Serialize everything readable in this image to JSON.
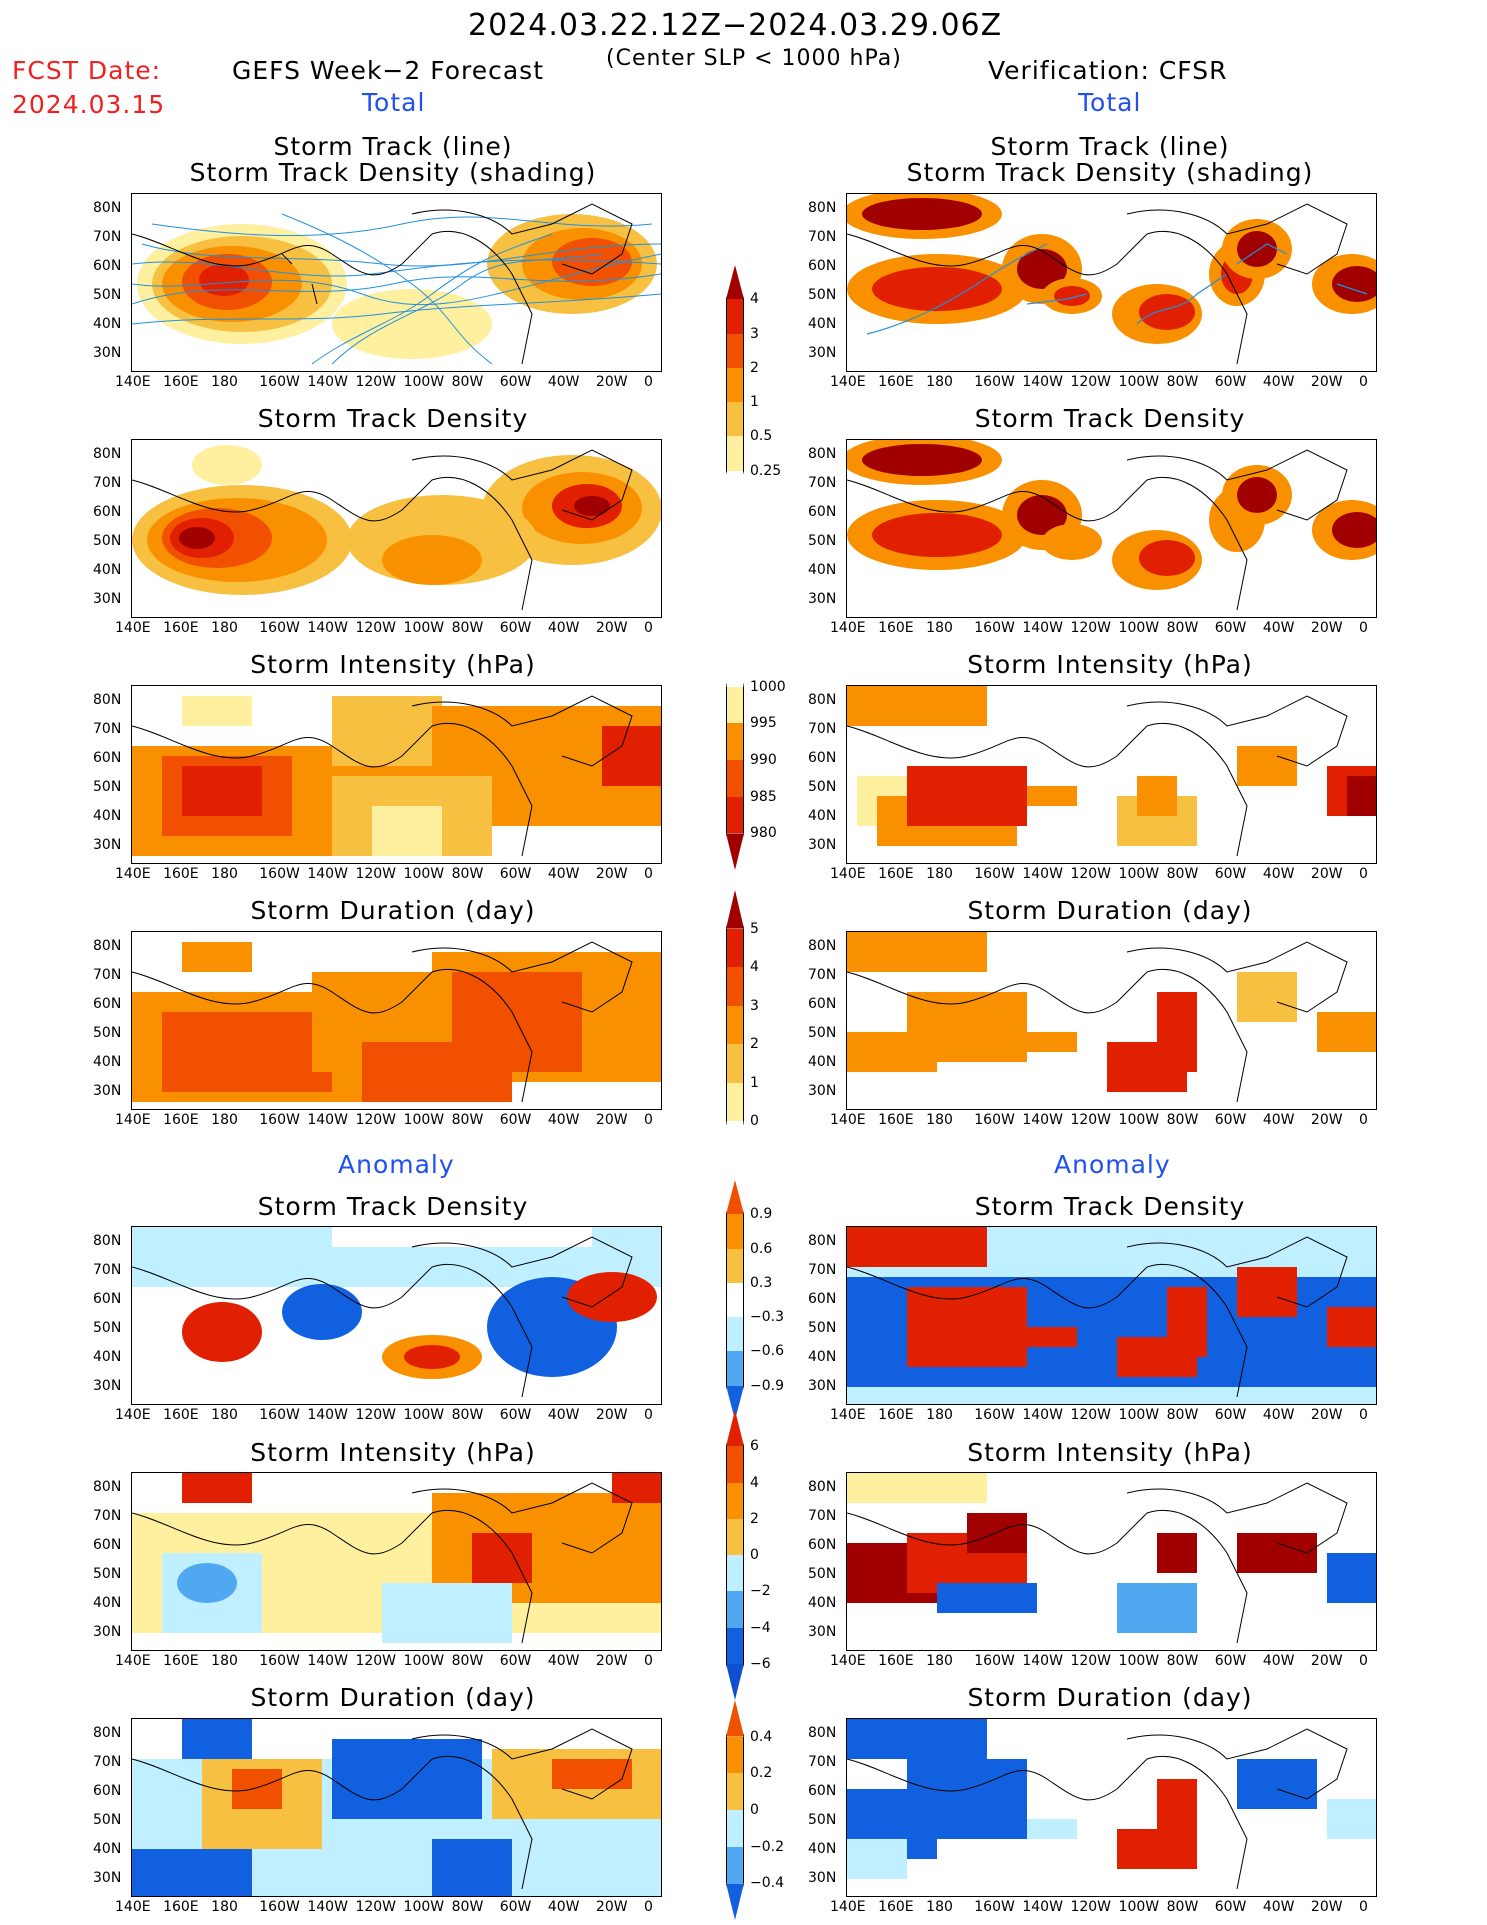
{
  "header": {
    "date_range": "2024.03.22.12Z−2024.03.29.06Z",
    "criterion": "(Center SLP < 1000 hPa)",
    "fcst_label": "FCST Date:",
    "fcst_date": "2024.03.15",
    "left_model": "GEFS Week−2 Forecast",
    "right_model": "Verification: CFSR",
    "total_label": "Total",
    "anomaly_label": "Anomaly"
  },
  "panel_titles": {
    "track_line": "Storm Track (line)",
    "track_density_shading": "Storm Track Density (shading)",
    "track_density": "Storm Track Density",
    "intensity": "Storm Intensity (hPa)",
    "duration": "Storm Duration (day)"
  },
  "axes": {
    "lon_ticks": [
      "140E",
      "160E",
      "180",
      "160W",
      "140W",
      "120W",
      "100W",
      "80W",
      "60W",
      "40W",
      "20W",
      "0"
    ],
    "lat_ticks": [
      "80N",
      "70N",
      "60N",
      "50N",
      "40N",
      "30N"
    ]
  },
  "colorbars": {
    "density_total": [
      "4",
      "3",
      "2",
      "1",
      "0.5",
      "0.25"
    ],
    "intensity_total": [
      "1000",
      "995",
      "990",
      "985",
      "980"
    ],
    "duration_total": [
      "5",
      "4",
      "3",
      "2",
      "1",
      "0"
    ],
    "density_anom": [
      "0.9",
      "0.6",
      "0.3",
      "−0.3",
      "−0.6",
      "−0.9"
    ],
    "intensity_anom": [
      "6",
      "4",
      "2",
      "0",
      "−2",
      "−4",
      "−6"
    ],
    "duration_anom": [
      "0.4",
      "0.2",
      "0",
      "−0.2",
      "−0.4"
    ]
  },
  "colors": {
    "dark_red": "#a00000",
    "red": "#e02000",
    "orange_red": "#f05000",
    "orange": "#f89000",
    "light_orange": "#f8c040",
    "pale_yellow": "#fff0a0",
    "light_blue": "#c0f0ff",
    "mid_blue": "#50a8f0",
    "blue": "#1060e0",
    "track_blue": "#2090e0"
  },
  "legend_icons": [
    "map-panel",
    "colorbar"
  ]
}
